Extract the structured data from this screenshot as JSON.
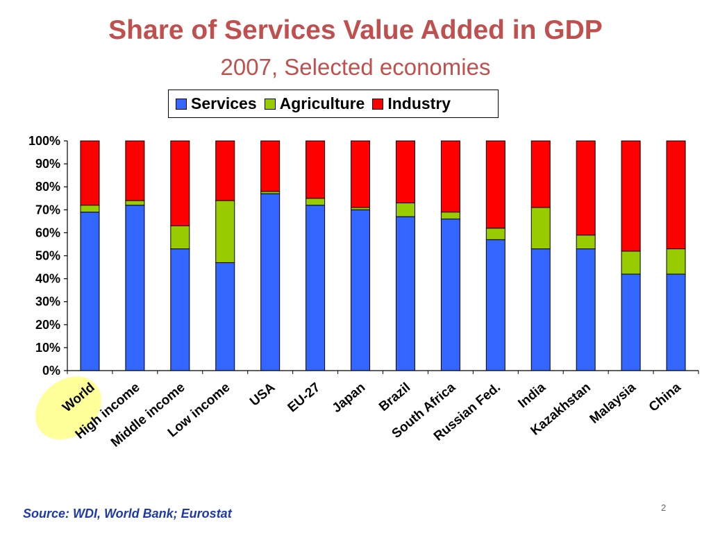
{
  "title": "Share of Services Value Added in GDP",
  "subtitle": "2007, Selected economies",
  "source": "Source: WDI, World Bank; Eurostat",
  "page_number": "2",
  "colors": {
    "title": "#c0504d",
    "services": "#3366ff",
    "agriculture": "#99cc00",
    "industry": "#ff0000",
    "highlight": "#ffff99",
    "source": "#1f3aa8"
  },
  "chart_data": {
    "type": "bar",
    "stacked": true,
    "title": "Share of Services Value Added in GDP",
    "subtitle": "2007, Selected economies",
    "xlabel": "",
    "ylabel": "",
    "ylim": [
      0,
      100
    ],
    "y_ticks": [
      "0%",
      "10%",
      "20%",
      "30%",
      "40%",
      "50%",
      "60%",
      "70%",
      "80%",
      "90%",
      "100%"
    ],
    "legend_position": "top",
    "grid": false,
    "highlighted_category": "World",
    "categories": [
      "World",
      "High income",
      "Middle income",
      "Low income",
      "USA",
      "EU-27",
      "Japan",
      "Brazil",
      "South Africa",
      "Russian Fed.",
      "India",
      "Kazakhstan",
      "Malaysia",
      "China"
    ],
    "series": [
      {
        "name": "Services",
        "values": [
          69,
          72,
          53,
          47,
          77,
          72,
          70,
          67,
          66,
          57,
          53,
          53,
          42,
          42
        ]
      },
      {
        "name": "Agriculture",
        "values": [
          3,
          2,
          10,
          27,
          1,
          3,
          1,
          6,
          3,
          5,
          18,
          6,
          10,
          11
        ]
      },
      {
        "name": "Industry",
        "values": [
          28,
          26,
          37,
          26,
          22,
          25,
          29,
          27,
          31,
          38,
          29,
          41,
          48,
          47
        ]
      }
    ]
  }
}
